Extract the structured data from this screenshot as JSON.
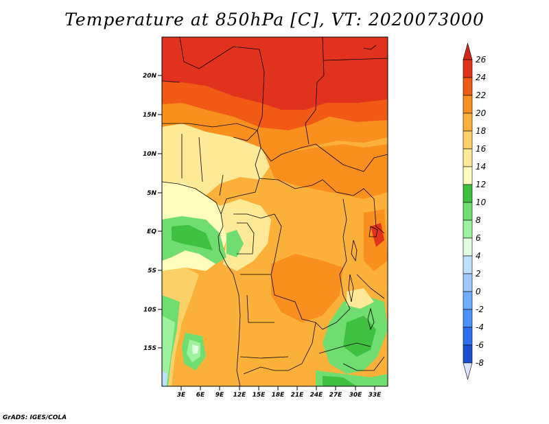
{
  "title": "Temperature at 850hPa [C], VT: 2020073000",
  "footer": "GrADS: IGES/COLA",
  "lat_ticks": [
    "20N",
    "15N",
    "10N",
    "5N",
    "EQ",
    "5S",
    "10S",
    "15S"
  ],
  "lon_ticks": [
    "3E",
    "6E",
    "9E",
    "12E",
    "15E",
    "18E",
    "21E",
    "24E",
    "27E",
    "30E",
    "33E"
  ],
  "colorbar": {
    "labels": [
      "26",
      "24",
      "22",
      "20",
      "18",
      "16",
      "14",
      "12",
      "10",
      "8",
      "6",
      "4",
      "2",
      "0",
      "-2",
      "-4",
      "-6",
      "-8"
    ],
    "colors": [
      "#e0321c",
      "#f05a14",
      "#f98f1c",
      "#fbb139",
      "#fbd069",
      "#fee997",
      "#fffebe",
      "#3fc03f",
      "#6fdd6f",
      "#9ef29e",
      "#e1fee1",
      "#bde0fe",
      "#9ccafe",
      "#6eaefe",
      "#4b91fa",
      "#2e6ff0",
      "#1d4fd0",
      "#1233a8",
      "#0b1670"
    ],
    "over_color": "#d2281a",
    "under_color": "#dde4ff"
  }
}
